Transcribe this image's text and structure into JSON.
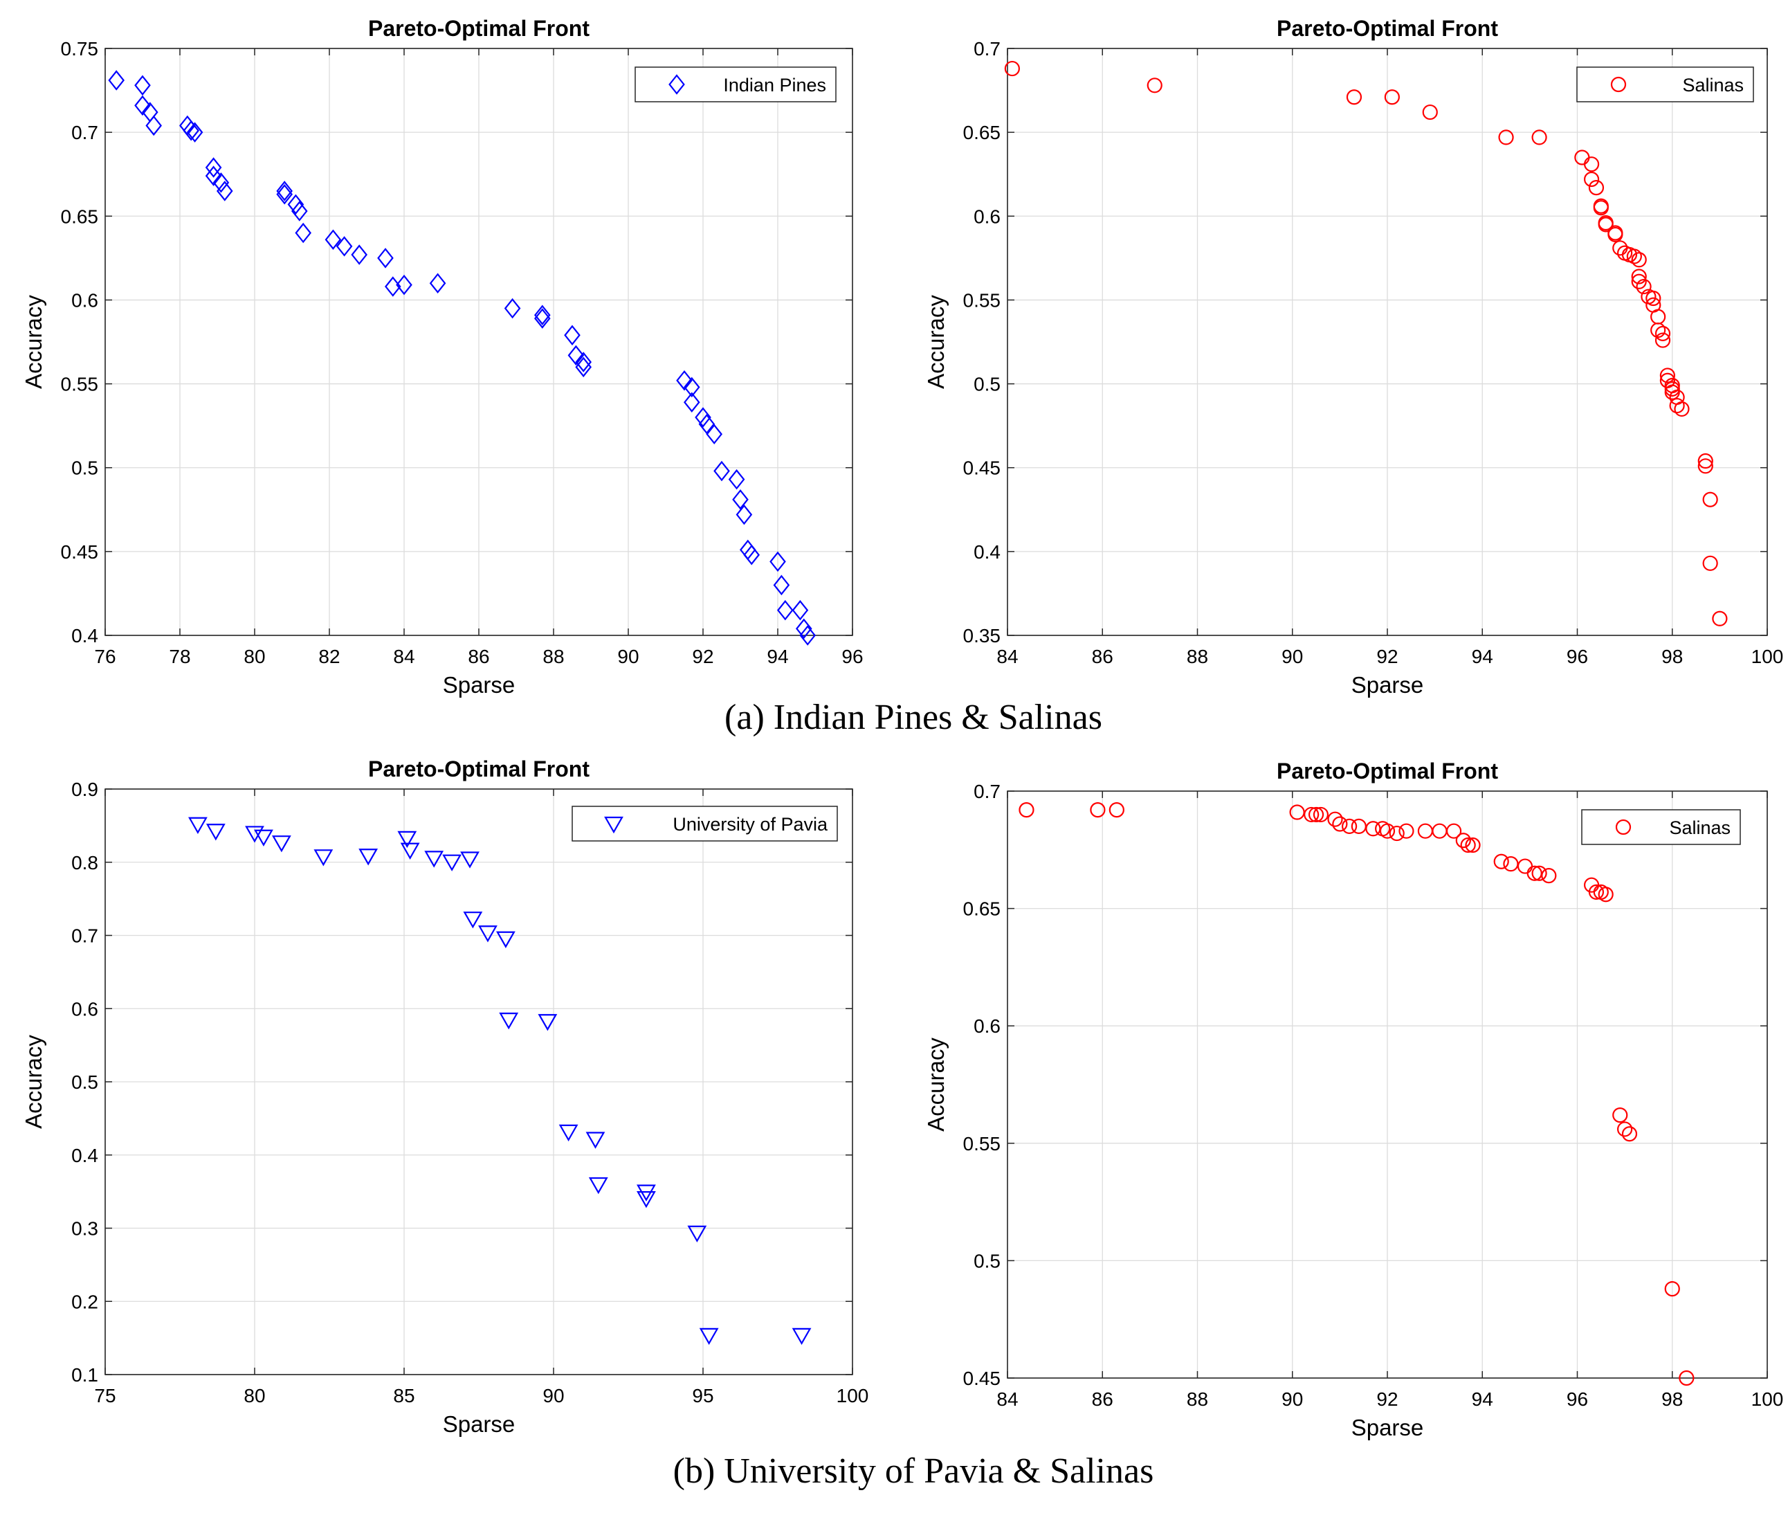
{
  "captions": {
    "a": "(a) Indian Pines & Salinas",
    "b": "(b) University of Pavia & Salinas"
  },
  "chart_data": [
    {
      "type": "scatter",
      "title": "Pareto-Optimal Front",
      "xlabel": "Sparse",
      "ylabel": "Accuracy",
      "xlim": [
        76,
        96
      ],
      "ylim": [
        0.4,
        0.75
      ],
      "xticks": [
        76,
        78,
        80,
        82,
        84,
        86,
        88,
        90,
        92,
        94,
        96
      ],
      "yticks": [
        0.4,
        0.45,
        0.5,
        0.55,
        0.6,
        0.65,
        0.7,
        0.75
      ],
      "ytick_labels": [
        "0.4",
        "0.45",
        "0.5",
        "0.55",
        "0.6",
        "0.65",
        "0.7",
        "0.75"
      ],
      "grid": true,
      "legend": "top-right",
      "series": [
        {
          "name": "Indian Pines",
          "marker": "diamond",
          "color": "#0000ff",
          "x": [
            76.3,
            77.0,
            77.0,
            77.2,
            77.3,
            78.2,
            78.3,
            78.4,
            78.9,
            78.9,
            79.1,
            79.2,
            80.8,
            80.8,
            81.1,
            81.2,
            81.3,
            82.1,
            82.4,
            82.8,
            83.5,
            83.7,
            84.0,
            84.9,
            86.9,
            87.7,
            87.7,
            88.5,
            88.6,
            88.8,
            88.8,
            91.5,
            91.7,
            91.7,
            92.0,
            92.1,
            92.3,
            92.5,
            92.9,
            93.0,
            93.1,
            93.2,
            93.3,
            94.0,
            94.1,
            94.2,
            94.6,
            94.7,
            94.8
          ],
          "y": [
            0.731,
            0.728,
            0.716,
            0.712,
            0.704,
            0.704,
            0.701,
            0.7,
            0.679,
            0.674,
            0.67,
            0.665,
            0.665,
            0.663,
            0.657,
            0.653,
            0.64,
            0.636,
            0.632,
            0.627,
            0.625,
            0.608,
            0.609,
            0.61,
            0.595,
            0.591,
            0.589,
            0.579,
            0.567,
            0.563,
            0.56,
            0.552,
            0.548,
            0.539,
            0.53,
            0.526,
            0.52,
            0.498,
            0.493,
            0.481,
            0.472,
            0.451,
            0.448,
            0.444,
            0.43,
            0.415,
            0.415,
            0.404,
            0.4
          ]
        }
      ]
    },
    {
      "type": "scatter",
      "title": "Pareto-Optimal Front",
      "xlabel": "Sparse",
      "ylabel": "Accuracy",
      "xlim": [
        84,
        100
      ],
      "ylim": [
        0.35,
        0.7
      ],
      "xticks": [
        84,
        86,
        88,
        90,
        92,
        94,
        96,
        98,
        100
      ],
      "yticks": [
        0.35,
        0.4,
        0.45,
        0.5,
        0.55,
        0.6,
        0.65,
        0.7
      ],
      "ytick_labels": [
        "0.35",
        "0.4",
        "0.45",
        "0.5",
        "0.55",
        "0.6",
        "0.65",
        "0.7"
      ],
      "grid": true,
      "legend": "top-right",
      "series": [
        {
          "name": "Salinas",
          "marker": "circle",
          "color": "#ff0000",
          "x": [
            84.1,
            87.1,
            91.3,
            92.1,
            92.9,
            94.5,
            95.2,
            96.1,
            96.3,
            96.3,
            96.4,
            96.5,
            96.5,
            96.6,
            96.6,
            96.8,
            96.8,
            96.9,
            97.0,
            97.1,
            97.2,
            97.3,
            97.3,
            97.3,
            97.4,
            97.5,
            97.6,
            97.6,
            97.7,
            97.7,
            97.8,
            97.8,
            97.9,
            97.9,
            98.0,
            98.0,
            98.0,
            98.1,
            98.1,
            98.2,
            98.7,
            98.7,
            98.8,
            98.8,
            99.0
          ],
          "y": [
            0.688,
            0.678,
            0.671,
            0.671,
            0.662,
            0.647,
            0.647,
            0.635,
            0.631,
            0.622,
            0.617,
            0.606,
            0.605,
            0.596,
            0.595,
            0.59,
            0.589,
            0.581,
            0.578,
            0.577,
            0.576,
            0.574,
            0.564,
            0.561,
            0.558,
            0.552,
            0.551,
            0.547,
            0.54,
            0.532,
            0.53,
            0.526,
            0.505,
            0.502,
            0.499,
            0.497,
            0.495,
            0.492,
            0.487,
            0.485,
            0.454,
            0.451,
            0.431,
            0.393,
            0.36
          ]
        }
      ]
    },
    {
      "type": "scatter",
      "title": "Pareto-Optimal Front",
      "xlabel": "Sparse",
      "ylabel": "Accuracy",
      "xlim": [
        75,
        100
      ],
      "ylim": [
        0.1,
        0.9
      ],
      "xticks": [
        75,
        80,
        85,
        90,
        95,
        100
      ],
      "yticks": [
        0.1,
        0.2,
        0.3,
        0.4,
        0.5,
        0.6,
        0.7,
        0.8,
        0.9
      ],
      "ytick_labels": [
        "0.1",
        "0.2",
        "0.3",
        "0.4",
        "0.5",
        "0.6",
        "0.7",
        "0.8",
        "0.9"
      ],
      "grid": true,
      "legend": "top-right",
      "series": [
        {
          "name": "University of Pavia",
          "marker": "triangle-down",
          "color": "#0000ff",
          "x": [
            78.1,
            78.7,
            80.0,
            80.3,
            80.9,
            82.3,
            83.8,
            85.1,
            85.2,
            86.0,
            86.6,
            87.2,
            87.3,
            87.8,
            88.4,
            88.5,
            89.8,
            90.5,
            91.4,
            91.5,
            93.1,
            93.1,
            94.8,
            95.2,
            98.3
          ],
          "y": [
            0.852,
            0.843,
            0.84,
            0.835,
            0.827,
            0.808,
            0.809,
            0.833,
            0.817,
            0.806,
            0.801,
            0.805,
            0.723,
            0.704,
            0.696,
            0.585,
            0.583,
            0.432,
            0.422,
            0.36,
            0.35,
            0.341,
            0.294,
            0.154,
            0.154
          ]
        }
      ]
    },
    {
      "type": "scatter",
      "title": "Pareto-Optimal Front",
      "xlabel": "Sparse",
      "ylabel": "Accuracy",
      "xlim": [
        84,
        100
      ],
      "ylim": [
        0.45,
        0.7
      ],
      "xticks": [
        84,
        86,
        88,
        90,
        92,
        94,
        96,
        98,
        100
      ],
      "yticks": [
        0.45,
        0.5,
        0.55,
        0.6,
        0.65,
        0.7
      ],
      "ytick_labels": [
        "0.45",
        "0.5",
        "0.55",
        "0.6",
        "0.65",
        "0.7"
      ],
      "grid": true,
      "legend": "top-right",
      "series": [
        {
          "name": "Salinas",
          "marker": "circle",
          "color": "#ff0000",
          "x": [
            84.4,
            85.9,
            86.3,
            90.1,
            90.4,
            90.5,
            90.6,
            90.9,
            91.0,
            91.2,
            91.4,
            91.7,
            91.9,
            92.0,
            92.2,
            92.4,
            92.8,
            93.1,
            93.4,
            93.6,
            93.7,
            93.8,
            94.4,
            94.6,
            94.9,
            95.1,
            95.2,
            95.4,
            96.3,
            96.4,
            96.5,
            96.6,
            96.9,
            97.0,
            97.1,
            98.0,
            98.3
          ],
          "y": [
            0.692,
            0.692,
            0.692,
            0.691,
            0.69,
            0.69,
            0.69,
            0.688,
            0.686,
            0.685,
            0.685,
            0.684,
            0.684,
            0.683,
            0.682,
            0.683,
            0.683,
            0.683,
            0.683,
            0.679,
            0.677,
            0.677,
            0.67,
            0.669,
            0.668,
            0.665,
            0.665,
            0.664,
            0.66,
            0.657,
            0.657,
            0.656,
            0.562,
            0.556,
            0.554,
            0.488,
            0.45
          ]
        }
      ]
    }
  ]
}
